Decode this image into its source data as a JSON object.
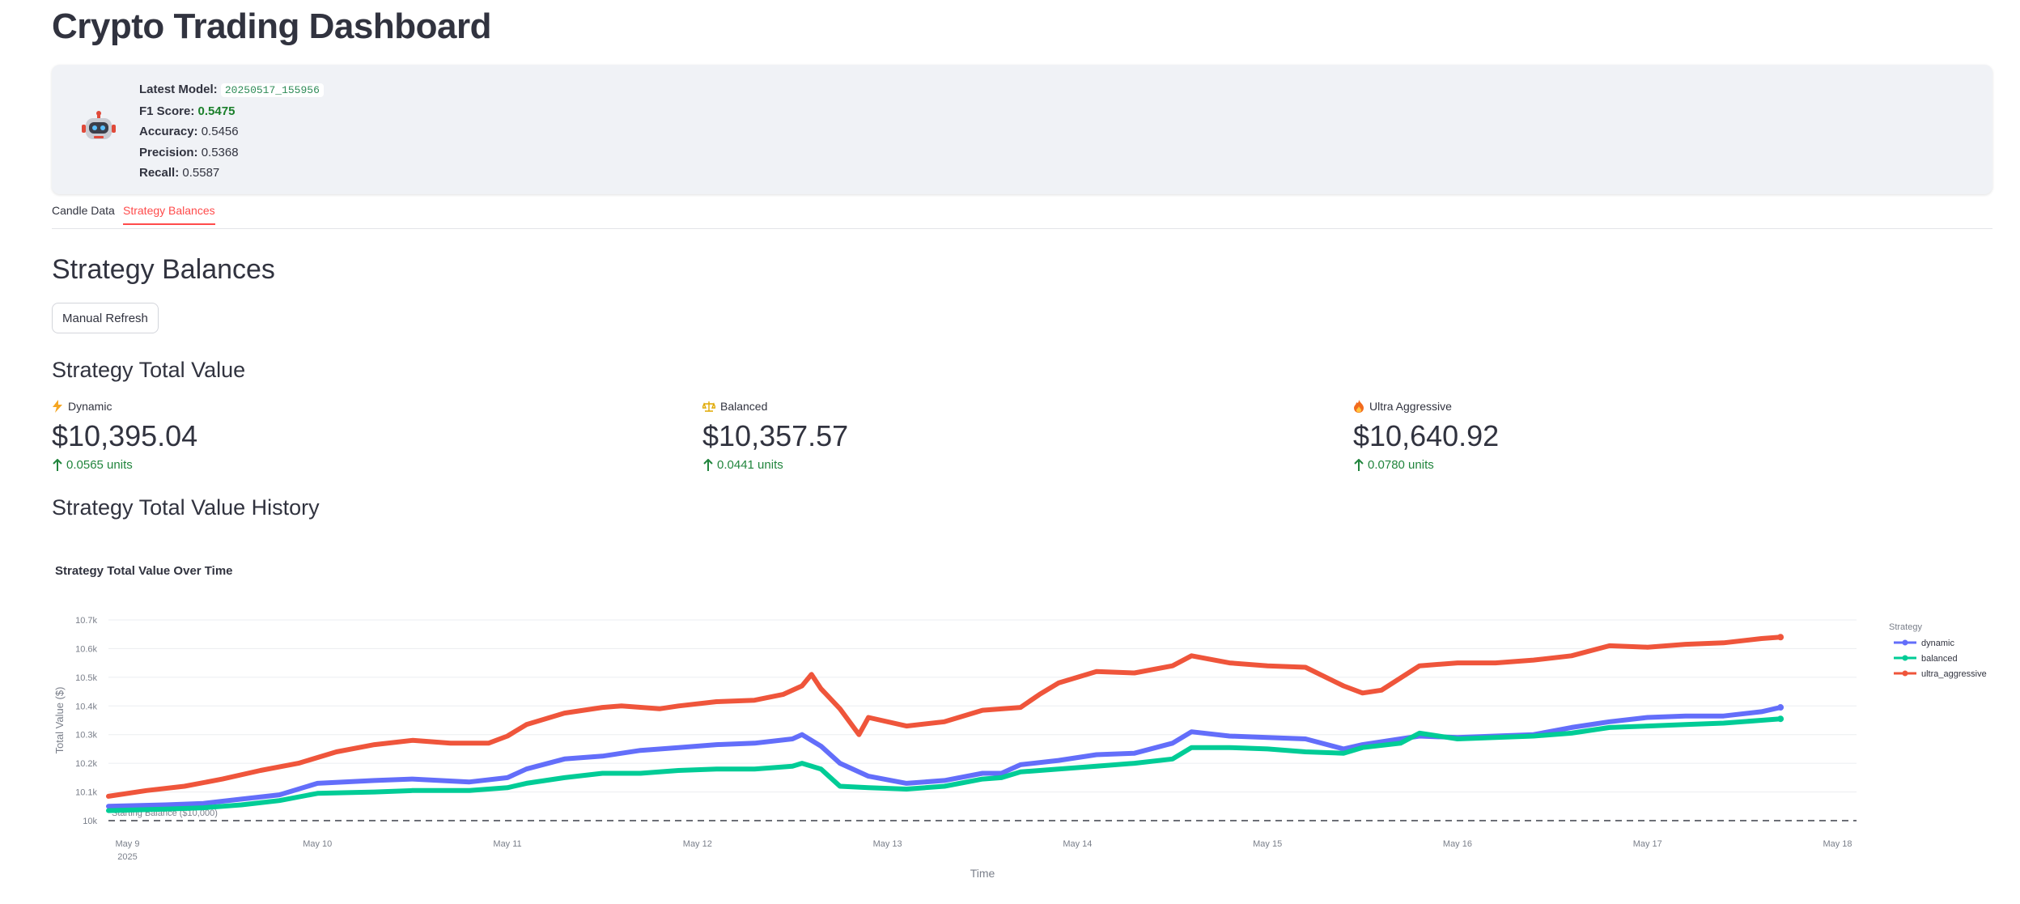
{
  "page_title": "Crypto Trading Dashboard",
  "model": {
    "latest_label": "Latest Model:",
    "latest_value": "20250517_155956",
    "f1_label": "F1 Score:",
    "f1_value": "0.5475",
    "accuracy_label": "Accuracy:",
    "accuracy_value": "0.5456",
    "precision_label": "Precision:",
    "precision_value": "0.5368",
    "recall_label": "Recall:",
    "recall_value": "0.5587",
    "icon": "robot-icon"
  },
  "tabs": [
    {
      "label": "Candle Data",
      "active": false
    },
    {
      "label": "Strategy Balances",
      "active": true
    }
  ],
  "section_title": "Strategy Balances",
  "refresh_label": "Manual Refresh",
  "total_value_title": "Strategy Total Value",
  "metrics": [
    {
      "icon": "lightning-icon",
      "label": "Dynamic",
      "value": "$10,395.04",
      "delta": "0.0565 units"
    },
    {
      "icon": "scale-icon",
      "label": "Balanced",
      "value": "$10,357.57",
      "delta": "0.0441 units"
    },
    {
      "icon": "fire-icon",
      "label": "Ultra Aggressive",
      "value": "$10,640.92",
      "delta": "0.0780 units"
    }
  ],
  "history_title": "Strategy Total Value History",
  "chart_data": {
    "type": "line",
    "title": "Strategy Total Value Over Time",
    "xlabel": "Time",
    "ylabel": "Total Value ($)",
    "x_ticks": [
      "May 9",
      "May 10",
      "May 11",
      "May 12",
      "May 13",
      "May 14",
      "May 15",
      "May 16",
      "May 17",
      "May 18"
    ],
    "x_tick_sub": "2025",
    "y_ticks": [
      "10k",
      "10.1k",
      "10.2k",
      "10.3k",
      "10.4k",
      "10.5k",
      "10.6k",
      "10.7k"
    ],
    "ylim": [
      10000,
      10700
    ],
    "xlim_days": [
      8.9,
      18.1
    ],
    "x_unit": "day of May 2025",
    "legend_title": "Strategy",
    "legend_position": "right",
    "reference_line": {
      "y": 10000,
      "label": "Starting Balance ($10,000)"
    },
    "series": [
      {
        "name": "dynamic",
        "color": "#636efa",
        "points": [
          [
            8.9,
            10050
          ],
          [
            9.2,
            10055
          ],
          [
            9.4,
            10060
          ],
          [
            9.6,
            10075
          ],
          [
            9.8,
            10090
          ],
          [
            10.0,
            10130
          ],
          [
            10.3,
            10140
          ],
          [
            10.5,
            10145
          ],
          [
            10.8,
            10135
          ],
          [
            11.0,
            10150
          ],
          [
            11.1,
            10180
          ],
          [
            11.3,
            10215
          ],
          [
            11.5,
            10225
          ],
          [
            11.7,
            10245
          ],
          [
            11.9,
            10255
          ],
          [
            12.1,
            10265
          ],
          [
            12.3,
            10270
          ],
          [
            12.5,
            10285
          ],
          [
            12.55,
            10300
          ],
          [
            12.65,
            10260
          ],
          [
            12.75,
            10200
          ],
          [
            12.9,
            10155
          ],
          [
            13.1,
            10130
          ],
          [
            13.3,
            10140
          ],
          [
            13.5,
            10165
          ],
          [
            13.6,
            10165
          ],
          [
            13.7,
            10195
          ],
          [
            13.9,
            10210
          ],
          [
            14.1,
            10230
          ],
          [
            14.3,
            10235
          ],
          [
            14.5,
            10270
          ],
          [
            14.6,
            10310
          ],
          [
            14.8,
            10295
          ],
          [
            15.0,
            10290
          ],
          [
            15.2,
            10285
          ],
          [
            15.4,
            10250
          ],
          [
            15.5,
            10265
          ],
          [
            15.7,
            10285
          ],
          [
            15.8,
            10295
          ],
          [
            16.0,
            10290
          ],
          [
            16.2,
            10295
          ],
          [
            16.4,
            10300
          ],
          [
            16.6,
            10325
          ],
          [
            16.8,
            10345
          ],
          [
            17.0,
            10360
          ],
          [
            17.2,
            10365
          ],
          [
            17.4,
            10365
          ],
          [
            17.6,
            10380
          ],
          [
            17.7,
            10395
          ]
        ]
      },
      {
        "name": "balanced",
        "color": "#00cc96",
        "points": [
          [
            8.9,
            10035
          ],
          [
            9.2,
            10040
          ],
          [
            9.4,
            10045
          ],
          [
            9.6,
            10055
          ],
          [
            9.8,
            10070
          ],
          [
            10.0,
            10095
          ],
          [
            10.3,
            10100
          ],
          [
            10.5,
            10105
          ],
          [
            10.8,
            10105
          ],
          [
            11.0,
            10115
          ],
          [
            11.1,
            10130
          ],
          [
            11.3,
            10150
          ],
          [
            11.5,
            10165
          ],
          [
            11.7,
            10165
          ],
          [
            11.9,
            10175
          ],
          [
            12.1,
            10180
          ],
          [
            12.3,
            10180
          ],
          [
            12.5,
            10190
          ],
          [
            12.55,
            10200
          ],
          [
            12.65,
            10180
          ],
          [
            12.75,
            10120
          ],
          [
            12.9,
            10115
          ],
          [
            13.1,
            10110
          ],
          [
            13.3,
            10120
          ],
          [
            13.5,
            10145
          ],
          [
            13.6,
            10150
          ],
          [
            13.7,
            10170
          ],
          [
            13.9,
            10180
          ],
          [
            14.1,
            10190
          ],
          [
            14.3,
            10200
          ],
          [
            14.5,
            10215
          ],
          [
            14.6,
            10255
          ],
          [
            14.8,
            10255
          ],
          [
            15.0,
            10250
          ],
          [
            15.2,
            10240
          ],
          [
            15.4,
            10235
          ],
          [
            15.5,
            10255
          ],
          [
            15.7,
            10270
          ],
          [
            15.8,
            10305
          ],
          [
            16.0,
            10285
          ],
          [
            16.2,
            10290
          ],
          [
            16.4,
            10295
          ],
          [
            16.6,
            10305
          ],
          [
            16.8,
            10325
          ],
          [
            17.0,
            10330
          ],
          [
            17.2,
            10335
          ],
          [
            17.4,
            10340
          ],
          [
            17.6,
            10350
          ],
          [
            17.7,
            10355
          ]
        ]
      },
      {
        "name": "ultra_aggressive",
        "color": "#ef553b",
        "points": [
          [
            8.9,
            10085
          ],
          [
            9.1,
            10105
          ],
          [
            9.3,
            10120
          ],
          [
            9.5,
            10145
          ],
          [
            9.7,
            10175
          ],
          [
            9.9,
            10200
          ],
          [
            10.1,
            10240
          ],
          [
            10.3,
            10265
          ],
          [
            10.5,
            10280
          ],
          [
            10.7,
            10270
          ],
          [
            10.9,
            10270
          ],
          [
            11.0,
            10295
          ],
          [
            11.1,
            10335
          ],
          [
            11.3,
            10375
          ],
          [
            11.5,
            10395
          ],
          [
            11.6,
            10400
          ],
          [
            11.8,
            10390
          ],
          [
            11.9,
            10400
          ],
          [
            12.1,
            10415
          ],
          [
            12.3,
            10420
          ],
          [
            12.45,
            10440
          ],
          [
            12.55,
            10470
          ],
          [
            12.6,
            10510
          ],
          [
            12.65,
            10460
          ],
          [
            12.75,
            10390
          ],
          [
            12.85,
            10300
          ],
          [
            12.9,
            10360
          ],
          [
            13.1,
            10330
          ],
          [
            13.3,
            10345
          ],
          [
            13.5,
            10385
          ],
          [
            13.7,
            10395
          ],
          [
            13.8,
            10440
          ],
          [
            13.9,
            10480
          ],
          [
            14.1,
            10520
          ],
          [
            14.3,
            10515
          ],
          [
            14.5,
            10540
          ],
          [
            14.6,
            10575
          ],
          [
            14.8,
            10550
          ],
          [
            15.0,
            10540
          ],
          [
            15.2,
            10535
          ],
          [
            15.4,
            10470
          ],
          [
            15.5,
            10445
          ],
          [
            15.6,
            10455
          ],
          [
            15.8,
            10540
          ],
          [
            16.0,
            10550
          ],
          [
            16.2,
            10550
          ],
          [
            16.4,
            10560
          ],
          [
            16.6,
            10575
          ],
          [
            16.8,
            10610
          ],
          [
            17.0,
            10605
          ],
          [
            17.2,
            10615
          ],
          [
            17.4,
            10620
          ],
          [
            17.6,
            10635
          ],
          [
            17.7,
            10640
          ]
        ]
      }
    ]
  }
}
